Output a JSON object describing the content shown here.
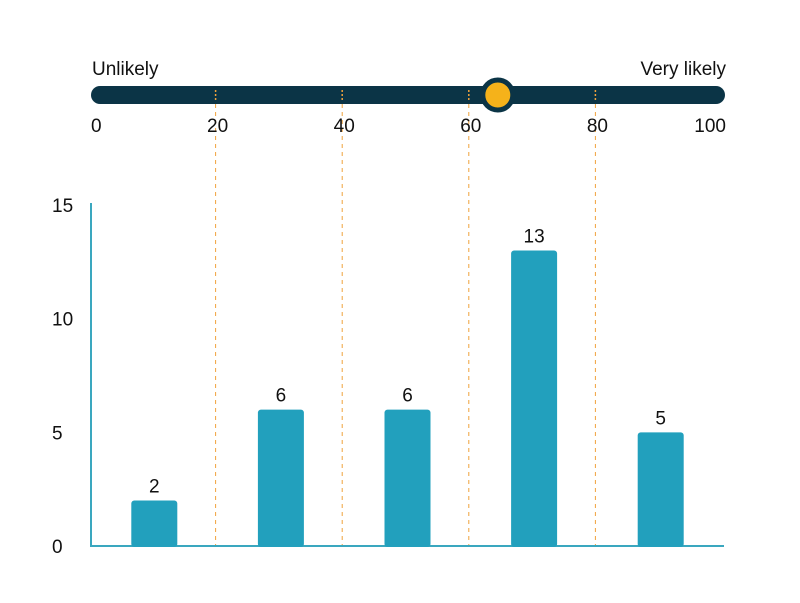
{
  "slider": {
    "left_label": "Unlikely",
    "right_label": "Very likely",
    "min": 0,
    "max": 100,
    "value": 63,
    "ticks": [
      "0",
      "20",
      "40",
      "60",
      "80",
      "100"
    ],
    "track_color": "#0b3446",
    "knob_color": "#f5b21a"
  },
  "chart_data": {
    "type": "bar",
    "categories": [
      "0-20",
      "20-40",
      "40-60",
      "60-80",
      "80-100"
    ],
    "values": [
      2,
      6,
      6,
      13,
      5
    ],
    "value_labels": [
      "2",
      "6",
      "6",
      "13",
      "5"
    ],
    "yticks": [
      "0",
      "5",
      "10",
      "15"
    ],
    "ylim": [
      0,
      15
    ],
    "bar_color": "#22a0bd",
    "axis_color": "#3aa7bf",
    "divider_color": "#f0a23c",
    "grid": false
  }
}
